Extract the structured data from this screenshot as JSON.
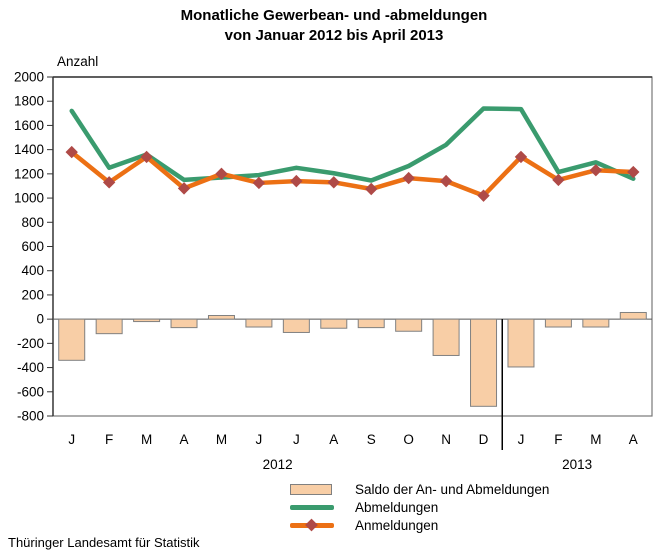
{
  "title": {
    "line1": "Monatliche Gewerbean- und -abmeldungen",
    "line2": "von Januar 2012 bis April 2013"
  },
  "source": "Thüringer Landesamt für Statistik",
  "chart_data": {
    "type": "bar+line combo",
    "title": "Monatliche Gewerbean- und -abmeldungen von Januar 2012 bis April 2013",
    "ylabel": "Anzahl",
    "ylim": [
      -800,
      2000
    ],
    "ytick_step": 200,
    "yticks": [
      2000,
      1800,
      1600,
      1400,
      1200,
      1000,
      800,
      600,
      400,
      200,
      0,
      -200,
      -400,
      -600,
      -800
    ],
    "grid": "off",
    "legend_position": "bottom",
    "categories": [
      "J",
      "F",
      "M",
      "A",
      "M",
      "J",
      "J",
      "A",
      "S",
      "O",
      "N",
      "D",
      "J",
      "F",
      "M",
      "A"
    ],
    "year_groups": [
      {
        "label": "2012",
        "from": 0,
        "to": 11
      },
      {
        "label": "2013",
        "from": 12,
        "to": 15
      }
    ],
    "separator_after_index": 11,
    "bar_border_color": "#808080",
    "axis_color": "#333333",
    "frame_color": "#777777",
    "series": [
      {
        "name": "Saldo der An- und Abmeldungen",
        "type": "bar",
        "color": "#F8CEA6",
        "values": [
          -340,
          -120,
          -20,
          -70,
          30,
          -65,
          -110,
          -75,
          -70,
          -100,
          -300,
          -720,
          -395,
          -65,
          -65,
          55
        ]
      },
      {
        "name": "Abmeldungen",
        "type": "line",
        "color": "#3A9B6E",
        "values": [
          1720,
          1250,
          1360,
          1150,
          1170,
          1190,
          1250,
          1205,
          1145,
          1265,
          1440,
          1740,
          1735,
          1215,
          1295,
          1160
        ]
      },
      {
        "name": "Anmeldungen",
        "type": "line",
        "marker": "diamond",
        "marker_color": "#AF4A47",
        "color": "#EC7014",
        "values": [
          1380,
          1130,
          1340,
          1080,
          1200,
          1125,
          1140,
          1130,
          1075,
          1165,
          1140,
          1020,
          1340,
          1150,
          1230,
          1215
        ]
      }
    ]
  }
}
